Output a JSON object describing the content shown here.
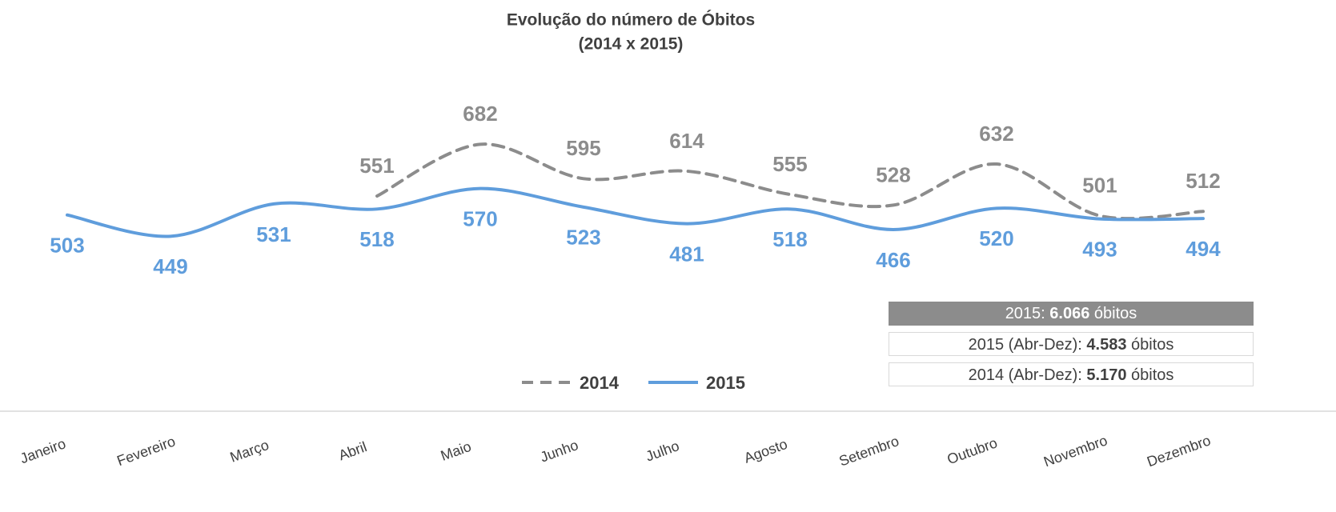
{
  "chart_data": {
    "type": "line",
    "title": "Evolução do número de Óbitos",
    "subtitle": "(2014 x 2015)",
    "categories": [
      "Janeiro",
      "Fevereiro",
      "Março",
      "Abril",
      "Maio",
      "Junho",
      "Julho",
      "Agosto",
      "Setembro",
      "Outubro",
      "Novembro",
      "Dezembro"
    ],
    "series": [
      {
        "name": "2014",
        "color": "#8c8c8c",
        "dash": true,
        "values": [
          null,
          null,
          null,
          551,
          682,
          595,
          614,
          555,
          528,
          632,
          501,
          512
        ]
      },
      {
        "name": "2015",
        "color": "#5f9ddc",
        "dash": false,
        "values": [
          503,
          449,
          531,
          518,
          570,
          523,
          481,
          518,
          466,
          520,
          493,
          494
        ]
      }
    ],
    "legend": "bottom",
    "summary": [
      {
        "prefix": "2015: ",
        "value": "6.066",
        "suffix": " óbitos"
      },
      {
        "prefix": "2015 (Abr-Dez): ",
        "value": "4.583",
        "suffix": " óbitos"
      },
      {
        "prefix": "2014 (Abr-Dez): ",
        "value": "5.170",
        "suffix": " óbitos"
      }
    ]
  }
}
